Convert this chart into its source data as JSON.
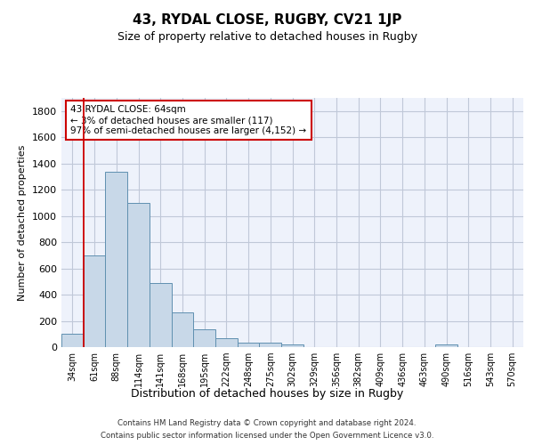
{
  "title": "43, RYDAL CLOSE, RUGBY, CV21 1JP",
  "subtitle": "Size of property relative to detached houses in Rugby",
  "xlabel": "Distribution of detached houses by size in Rugby",
  "ylabel": "Number of detached properties",
  "bar_color": "#c8d8e8",
  "bar_edge_color": "#6090b0",
  "categories": [
    "34sqm",
    "61sqm",
    "88sqm",
    "114sqm",
    "141sqm",
    "168sqm",
    "195sqm",
    "222sqm",
    "248sqm",
    "275sqm",
    "302sqm",
    "329sqm",
    "356sqm",
    "382sqm",
    "409sqm",
    "436sqm",
    "463sqm",
    "490sqm",
    "516sqm",
    "543sqm",
    "570sqm"
  ],
  "values": [
    100,
    700,
    1340,
    1100,
    490,
    265,
    135,
    70,
    35,
    35,
    18,
    0,
    0,
    0,
    0,
    0,
    0,
    20,
    0,
    0,
    0
  ],
  "ylim": [
    0,
    1900
  ],
  "yticks": [
    0,
    200,
    400,
    600,
    800,
    1000,
    1200,
    1400,
    1600,
    1800
  ],
  "property_line_x": 0.5,
  "property_line_color": "#cc0000",
  "annotation_text": "43 RYDAL CLOSE: 64sqm\n← 3% of detached houses are smaller (117)\n97% of semi-detached houses are larger (4,152) →",
  "annotation_box_color": "#cc0000",
  "footer_line1": "Contains HM Land Registry data © Crown copyright and database right 2024.",
  "footer_line2": "Contains public sector information licensed under the Open Government Licence v3.0.",
  "background_color": "#eef2fb",
  "grid_color": "#c0c8d8"
}
